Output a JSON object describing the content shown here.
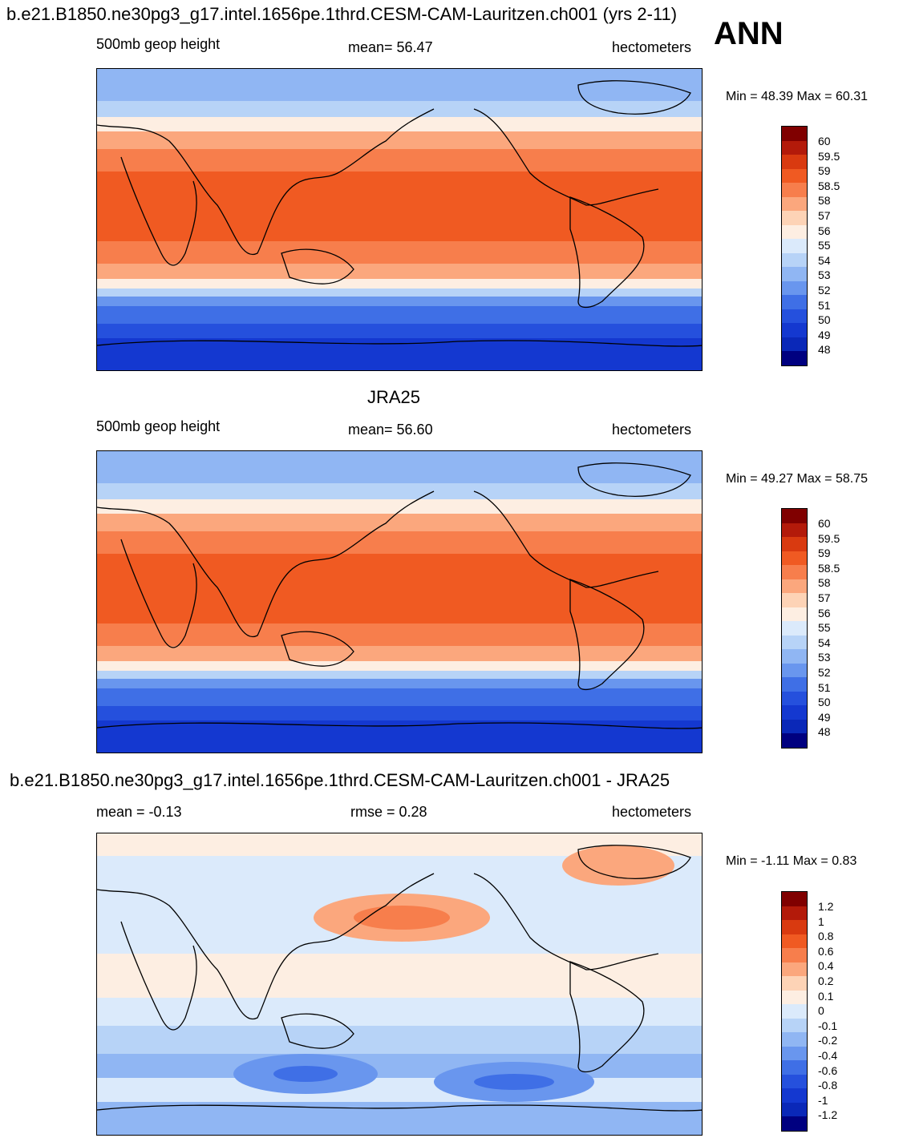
{
  "figure_title": "b.e21.B1850.ne30pg3_g17.intel.1656pe.1thrd.CESM-CAM-Lauritzen.ch001 (yrs 2-11)",
  "season": "ANN",
  "panels": [
    {
      "id": "model",
      "left_label": "500mb geop height",
      "center_label": "mean=  56.47",
      "right_label": "hectometers",
      "minmax": "Min =  48.39 Max =  60.31",
      "colorbar": {
        "colors": [
          "#800000",
          "#b31a0a",
          "#d93a10",
          "#f05a22",
          "#f77e4c",
          "#fba77d",
          "#fdd3b6",
          "#fdeee2",
          "#dbeafb",
          "#b7d3f7",
          "#90b6f3",
          "#6996ee",
          "#3f6fe6",
          "#2550dd",
          "#1438d0",
          "#0a28b8",
          "#000080"
        ],
        "labels": [
          "60",
          "59.5",
          "59",
          "58.5",
          "58",
          "57",
          "56",
          "55",
          "54",
          "53",
          "52",
          "51",
          "50",
          "49",
          "48"
        ]
      }
    },
    {
      "id": "obs",
      "panel_title": "JRA25",
      "left_label": "500mb geop height",
      "center_label": "mean=  56.60",
      "right_label": "hectometers",
      "minmax": "Min =  49.27 Max =  58.75",
      "colorbar": {
        "colors": [
          "#800000",
          "#b31a0a",
          "#d93a10",
          "#f05a22",
          "#f77e4c",
          "#fba77d",
          "#fdd3b6",
          "#fdeee2",
          "#dbeafb",
          "#b7d3f7",
          "#90b6f3",
          "#6996ee",
          "#3f6fe6",
          "#2550dd",
          "#1438d0",
          "#0a28b8",
          "#000080"
        ],
        "labels": [
          "60",
          "59.5",
          "59",
          "58.5",
          "58",
          "57",
          "56",
          "55",
          "54",
          "53",
          "52",
          "51",
          "50",
          "49",
          "48"
        ]
      }
    },
    {
      "id": "diff",
      "panel_title": "b.e21.B1850.ne30pg3_g17.intel.1656pe.1thrd.CESM-CAM-Lauritzen.ch001 - JRA25",
      "left_label": "mean =  -0.13",
      "center_label": "rmse =   0.28",
      "right_label": "hectometers",
      "minmax": "Min =  -1.11 Max =   0.83",
      "colorbar": {
        "colors": [
          "#800000",
          "#b31a0a",
          "#d93a10",
          "#f05a22",
          "#f77e4c",
          "#fba77d",
          "#fdd3b6",
          "#fdeee2",
          "#dbeafb",
          "#b7d3f7",
          "#90b6f3",
          "#6996ee",
          "#3f6fe6",
          "#2550dd",
          "#1438d0",
          "#0a28b8",
          "#000080"
        ],
        "labels": [
          "1.2",
          "1",
          "0.8",
          "0.6",
          "0.4",
          "0.2",
          "0.1",
          "0",
          "-0.1",
          "-0.2",
          "-0.4",
          "-0.6",
          "-0.8",
          "-1",
          "-1.2"
        ]
      }
    }
  ]
}
